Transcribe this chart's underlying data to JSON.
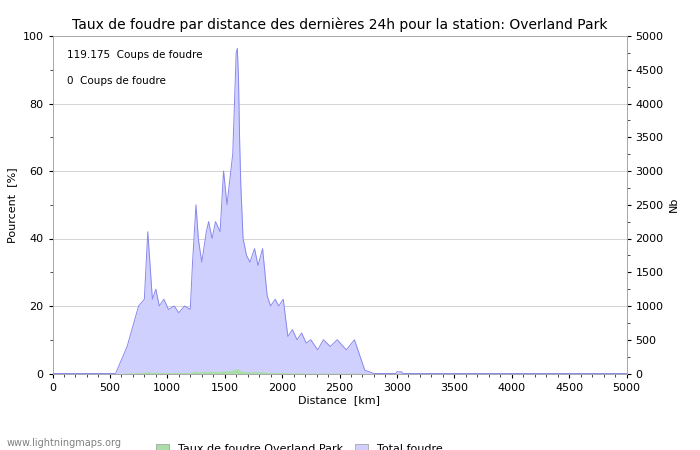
{
  "title": "Taux de foudre par distance des dernières 24h pour la station: Overland Park",
  "xlabel": "Distance  [km]",
  "ylabel_left": "Pourcent  [%]",
  "ylabel_right": "Nb",
  "annotation_line1": "119.175  Coups de foudre",
  "annotation_line2": "0  Coups de foudre",
  "xlim": [
    0,
    5000
  ],
  "ylim_left": [
    0,
    100
  ],
  "ylim_right": [
    0,
    5000
  ],
  "xticks": [
    0,
    500,
    1000,
    1500,
    2000,
    2500,
    3000,
    3500,
    4000,
    4500,
    5000
  ],
  "yticks_left": [
    0,
    20,
    40,
    60,
    80,
    100
  ],
  "yticks_right": [
    0,
    500,
    1000,
    1500,
    2000,
    2500,
    3000,
    3500,
    4000,
    4500,
    5000
  ],
  "legend_label_green": "Taux de foudre Overland Park",
  "legend_label_blue": "Total foudre",
  "line_color": "#8888ee",
  "fill_color_blue": "#d0d0ff",
  "fill_color_green": "#aaddaa",
  "watermark": "www.lightningmaps.org",
  "background_color": "#ffffff",
  "grid_color": "#cccccc",
  "title_fontsize": 10,
  "axis_fontsize": 8,
  "tick_fontsize": 8,
  "watermark_fontsize": 7,
  "legend_fontsize": 8
}
